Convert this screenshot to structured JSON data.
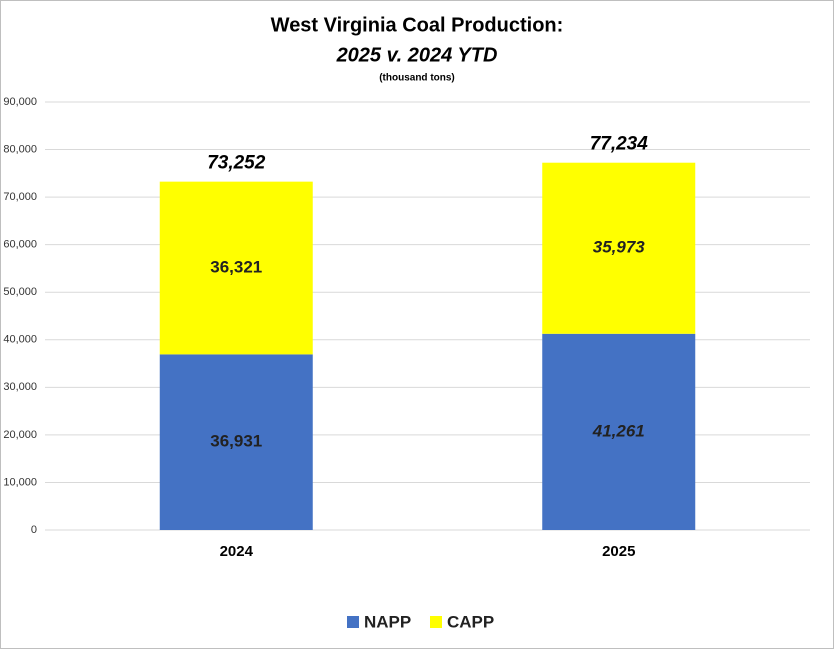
{
  "chart_data": {
    "type": "stacked_bar",
    "title": "West Virginia Coal Production:",
    "subtitle": "2025 v. 2024 YTD",
    "units_note": "(thousand tons)",
    "categories": [
      "2024",
      "2025"
    ],
    "series": [
      {
        "name": "NAPP",
        "color": "#4472c4",
        "values": [
          36931,
          41261
        ],
        "value_labels": [
          "36,931",
          "41,261"
        ]
      },
      {
        "name": "CAPP",
        "color": "#ffff00",
        "values": [
          36321,
          35973
        ],
        "value_labels": [
          "36,321",
          "35,973"
        ]
      }
    ],
    "total_labels": [
      "73,252",
      "77,234"
    ],
    "ylim": [
      0,
      90000
    ],
    "yticks": [
      0,
      {
        "value": 10000,
        "label": "10,000"
      },
      {
        "value": 20000,
        "label": "20,000"
      },
      {
        "value": 30000,
        "label": "30,000"
      },
      {
        "value": 40000,
        "label": "40,000"
      },
      {
        "value": 50000,
        "label": "50,000"
      },
      {
        "value": 60000,
        "label": "60,000"
      },
      {
        "value": 70000,
        "label": "70,000"
      },
      {
        "value": 80000,
        "label": "80,000"
      },
      {
        "value": 90000,
        "label": "90,000"
      }
    ],
    "grid": true,
    "legend": "bottom"
  }
}
